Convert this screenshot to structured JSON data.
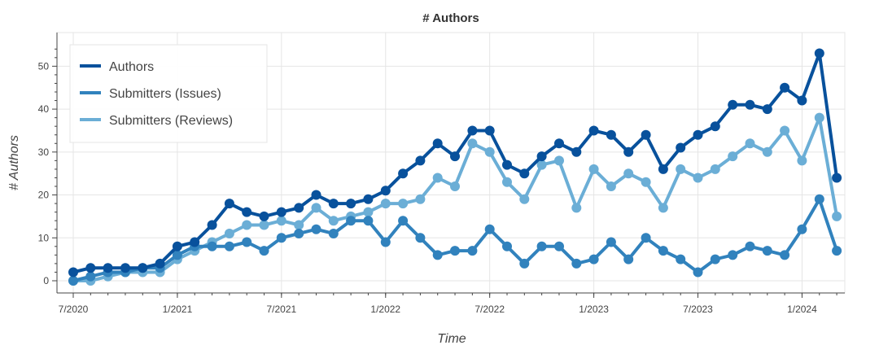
{
  "chart_data": {
    "type": "line",
    "title": "# Authors",
    "xlabel": "Time",
    "ylabel": "# Authors",
    "x_tick_labels": [
      "7/2020",
      "1/2021",
      "7/2021",
      "1/2022",
      "7/2022",
      "1/2023",
      "7/2023",
      "1/2024"
    ],
    "x_tick_dates": [
      "2020-07",
      "2021-01",
      "2021-07",
      "2022-01",
      "2022-07",
      "2023-01",
      "2023-07",
      "2024-01"
    ],
    "y_ticks": [
      0,
      10,
      20,
      30,
      40,
      50
    ],
    "xlim": [
      "2020-07",
      "2024-03"
    ],
    "ylim": [
      0,
      55
    ],
    "grid": true,
    "legend_position": "top-left",
    "x": [
      "2020-07",
      "2020-08",
      "2020-09",
      "2020-10",
      "2020-11",
      "2020-12",
      "2021-01",
      "2021-02",
      "2021-03",
      "2021-04",
      "2021-05",
      "2021-06",
      "2021-07",
      "2021-08",
      "2021-09",
      "2021-10",
      "2021-11",
      "2021-12",
      "2022-01",
      "2022-02",
      "2022-03",
      "2022-04",
      "2022-05",
      "2022-06",
      "2022-07",
      "2022-08",
      "2022-09",
      "2022-10",
      "2022-11",
      "2022-12",
      "2023-01",
      "2023-02",
      "2023-03",
      "2023-04",
      "2023-05",
      "2023-06",
      "2023-07",
      "2023-08",
      "2023-09",
      "2023-10",
      "2023-11",
      "2023-12",
      "2024-01",
      "2024-02",
      "2024-03"
    ],
    "series": [
      {
        "name": "Authors",
        "color": "#08519c",
        "values": [
          2,
          3,
          3,
          3,
          3,
          4,
          8,
          9,
          13,
          18,
          16,
          15,
          16,
          17,
          20,
          18,
          18,
          19,
          21,
          25,
          28,
          32,
          29,
          35,
          35,
          27,
          25,
          29,
          32,
          30,
          35,
          34,
          30,
          34,
          26,
          31,
          34,
          36,
          41,
          41,
          40,
          45,
          42,
          53,
          24
        ]
      },
      {
        "name": "Submitters (Issues)",
        "color": "#3182bd",
        "values": [
          0,
          1,
          2,
          2,
          3,
          3,
          6,
          8,
          8,
          8,
          9,
          7,
          10,
          11,
          12,
          11,
          14,
          14,
          9,
          14,
          10,
          6,
          7,
          7,
          12,
          8,
          4,
          8,
          8,
          4,
          5,
          9,
          5,
          10,
          7,
          5,
          2,
          5,
          6,
          8,
          7,
          6,
          12,
          19,
          7
        ]
      },
      {
        "name": "Submitters (Reviews)",
        "color": "#6baed6",
        "values": [
          0,
          0,
          1,
          2,
          2,
          2,
          5,
          7,
          9,
          11,
          13,
          13,
          14,
          13,
          17,
          14,
          15,
          16,
          18,
          18,
          19,
          24,
          22,
          32,
          30,
          23,
          19,
          27,
          28,
          17,
          26,
          22,
          25,
          23,
          17,
          26,
          24,
          26,
          29,
          32,
          30,
          35,
          28,
          38,
          15
        ]
      }
    ]
  }
}
